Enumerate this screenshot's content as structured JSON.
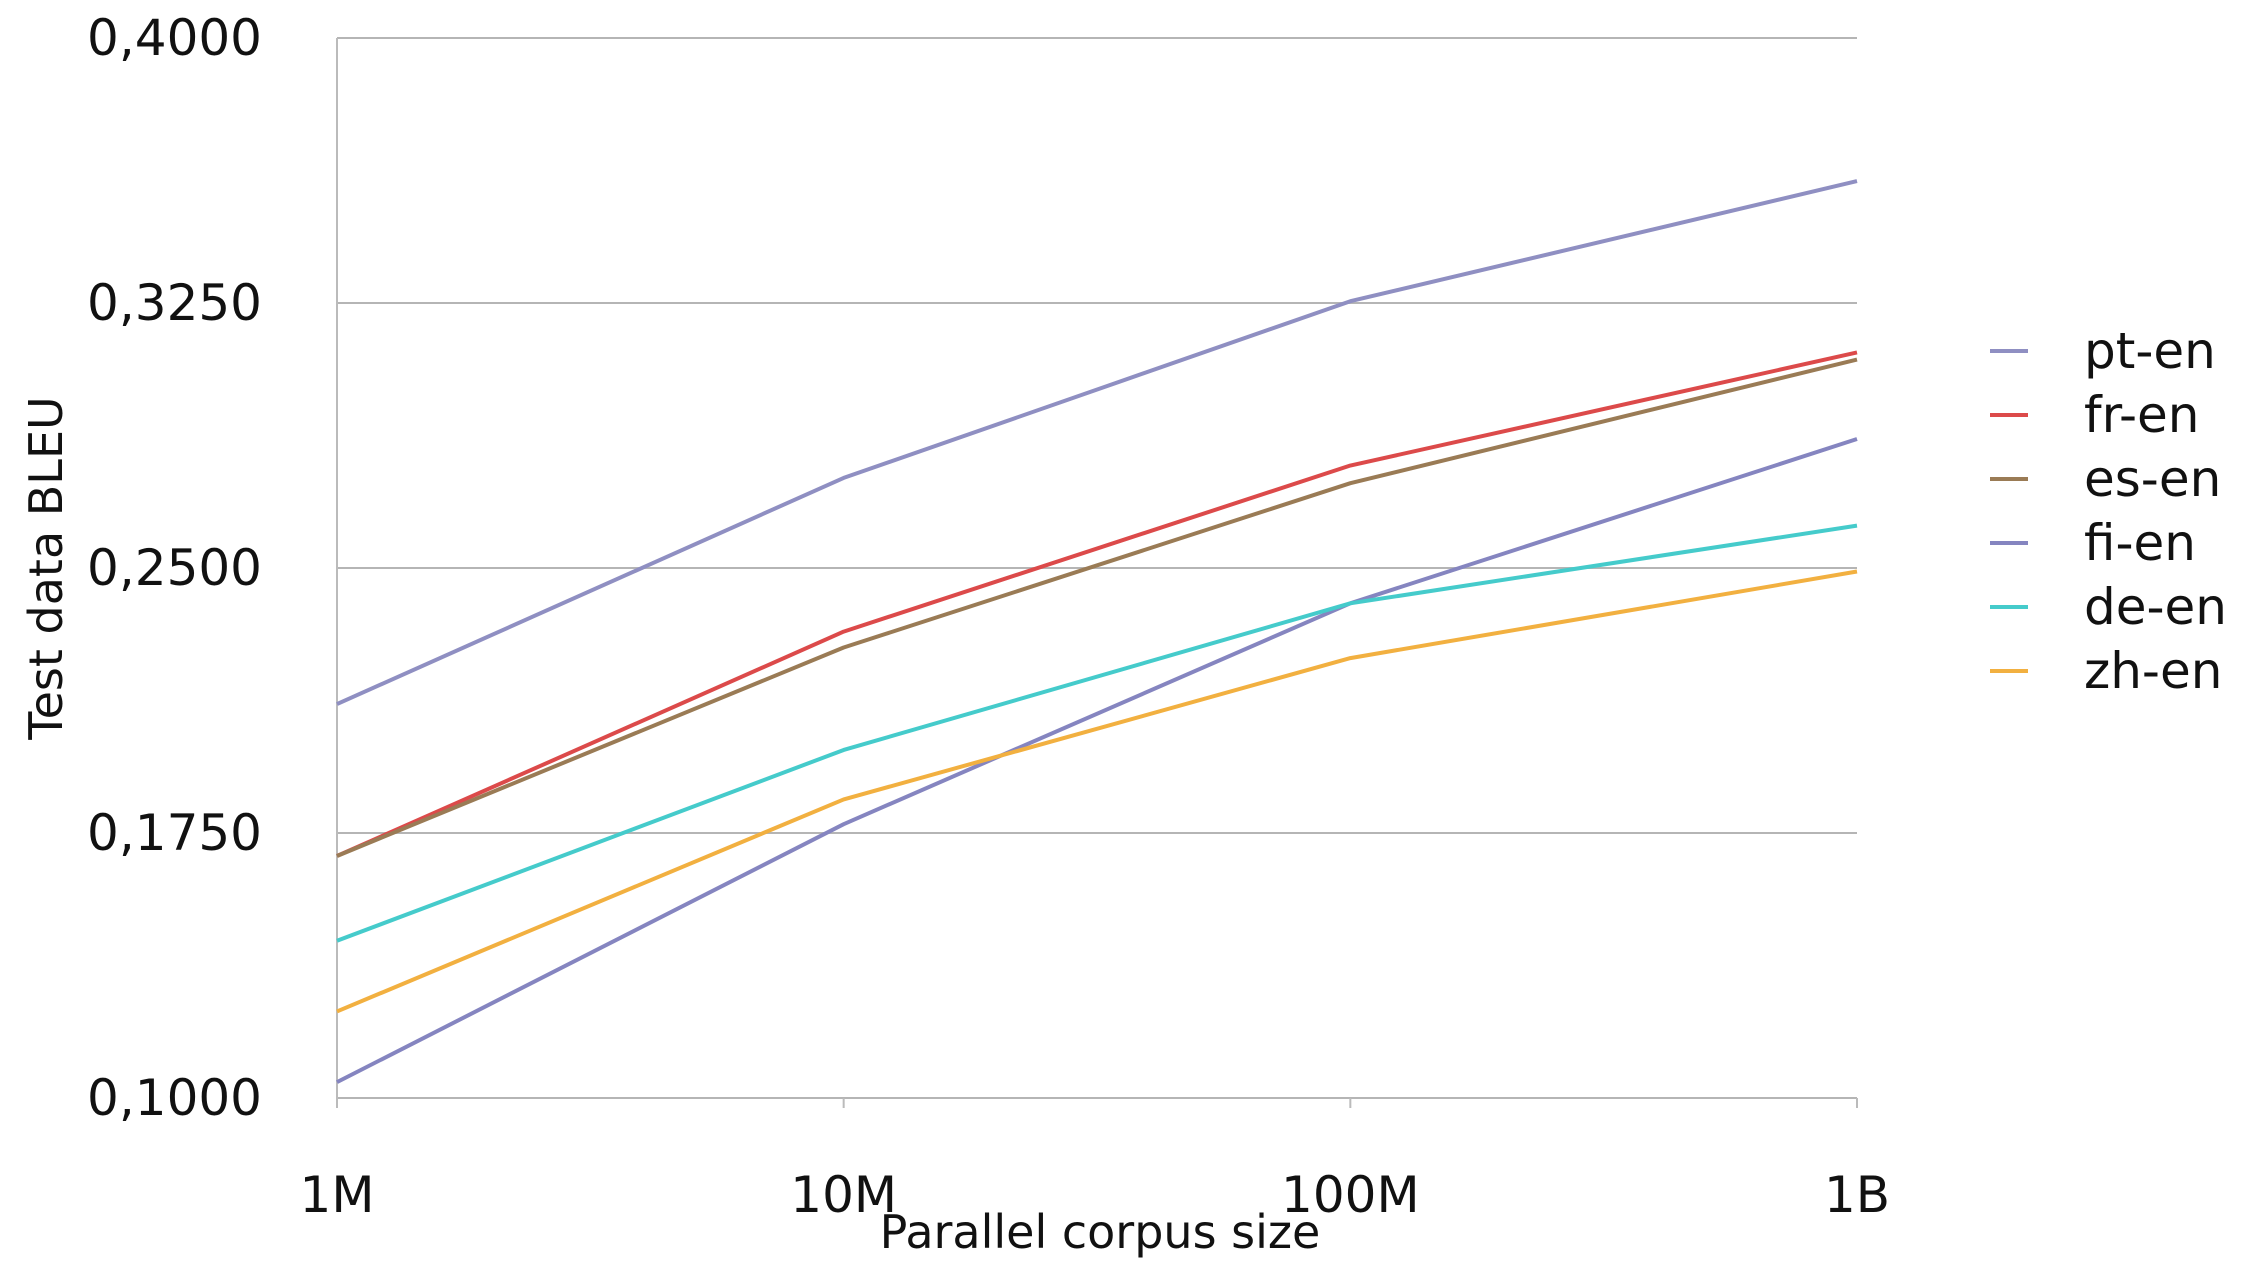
{
  "chart_data": {
    "type": "line",
    "xlabel": "Parallel corpus size",
    "ylabel": "Test data BLEU",
    "x_scale": "log",
    "categories": [
      "1M",
      "10M",
      "100M",
      "1B"
    ],
    "y_ticks": [
      "0,1000",
      "0,1750",
      "0,2500",
      "0,3250",
      "0,4000"
    ],
    "ylim": [
      0.1,
      0.4
    ],
    "grid": "horizontal",
    "legend_position": "right",
    "series": [
      {
        "name": "pt-en",
        "color": "#8f8fc2",
        "values": [
          0.2115,
          0.2755,
          0.3255,
          0.3595
        ]
      },
      {
        "name": "fr-en",
        "color": "#dc4a4a",
        "values": [
          0.1685,
          0.232,
          0.279,
          0.311
        ]
      },
      {
        "name": "es-en",
        "color": "#9a7b55",
        "values": [
          0.1685,
          0.2275,
          0.274,
          0.309
        ]
      },
      {
        "name": "fi-en",
        "color": "#8585c0",
        "values": [
          0.1045,
          0.1775,
          0.24,
          0.2865
        ]
      },
      {
        "name": "de-en",
        "color": "#45cbcb",
        "values": [
          0.1445,
          0.1985,
          0.24,
          0.262
        ]
      },
      {
        "name": "zh-en",
        "color": "#f2b040",
        "values": [
          0.1245,
          0.1845,
          0.2245,
          0.249
        ]
      }
    ]
  }
}
